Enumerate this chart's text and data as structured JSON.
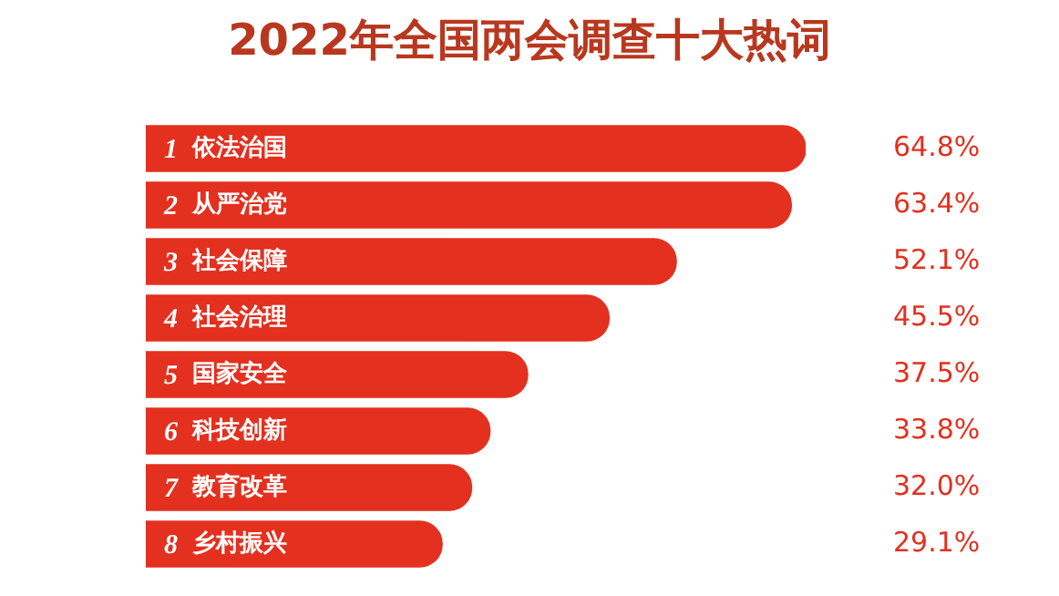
{
  "chart_data": {
    "type": "bar",
    "orientation": "horizontal",
    "title": "2022年全国两会调查十大热词",
    "categories": [
      "1 依法治国",
      "2 从严治党",
      "3 社会保障",
      "4 社会治理",
      "5 国家安全",
      "6 科技创新",
      "7 教育改革",
      "8 乡村振兴"
    ],
    "values": [
      64.8,
      63.4,
      52.1,
      45.5,
      37.5,
      33.8,
      32.0,
      29.1
    ],
    "value_labels": [
      "64.8%",
      "63.4%",
      "52.1%",
      "45.5%",
      "37.5%",
      "33.8%",
      "32.0%",
      "29.1%"
    ],
    "color": "#e3301f",
    "legend": false
  }
}
